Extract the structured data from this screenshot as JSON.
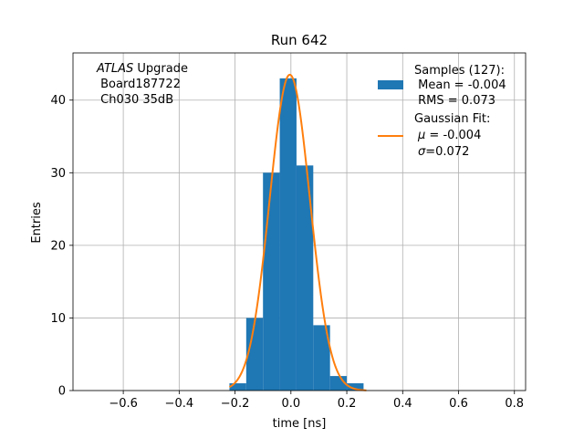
{
  "chart_data": {
    "type": "bar",
    "title": "Run 642",
    "xlabel": "time [ns]",
    "ylabel": "Entries",
    "xlim": [
      -0.78,
      0.84
    ],
    "ylim": [
      0,
      46.5
    ],
    "grid": true,
    "xticks": [
      -0.6,
      -0.4,
      -0.2,
      0.0,
      0.2,
      0.4,
      0.6,
      0.8
    ],
    "xtick_labels": [
      "−0.6",
      "−0.4",
      "−0.2",
      "0.0",
      "0.2",
      "0.4",
      "0.6",
      "0.8"
    ],
    "yticks": [
      0,
      10,
      20,
      30,
      40
    ],
    "ytick_labels": [
      "0",
      "10",
      "20",
      "30",
      "40"
    ],
    "bin_edges": [
      -0.22,
      -0.16,
      -0.1,
      -0.04,
      0.02,
      0.08,
      0.14,
      0.2,
      0.26
    ],
    "histogram_counts": [
      1,
      10,
      30,
      43,
      31,
      9,
      2,
      1
    ],
    "histogram_color": "#1f77b4",
    "fit": {
      "amplitude": 43.5,
      "mu": -0.004,
      "sigma": 0.072,
      "x_range": [
        -0.22,
        0.27
      ],
      "color": "#ff7f0e"
    },
    "annotation": {
      "italic": "ATLAS",
      "line1_rest": " Upgrade",
      "line2": " Board187722",
      "line3": " Ch030 35dB"
    },
    "legend": {
      "placement": "upper-right",
      "samples_title": "Samples (127):",
      "samples_mean": " Mean = -0.004",
      "samples_rms": " RMS = 0.073",
      "fit_title": "Gaussian Fit:",
      "fit_mu_label": "μ",
      "fit_mu_value": " = -0.004",
      "fit_sigma_label": "σ",
      "fit_sigma_value": "=0.072"
    }
  }
}
